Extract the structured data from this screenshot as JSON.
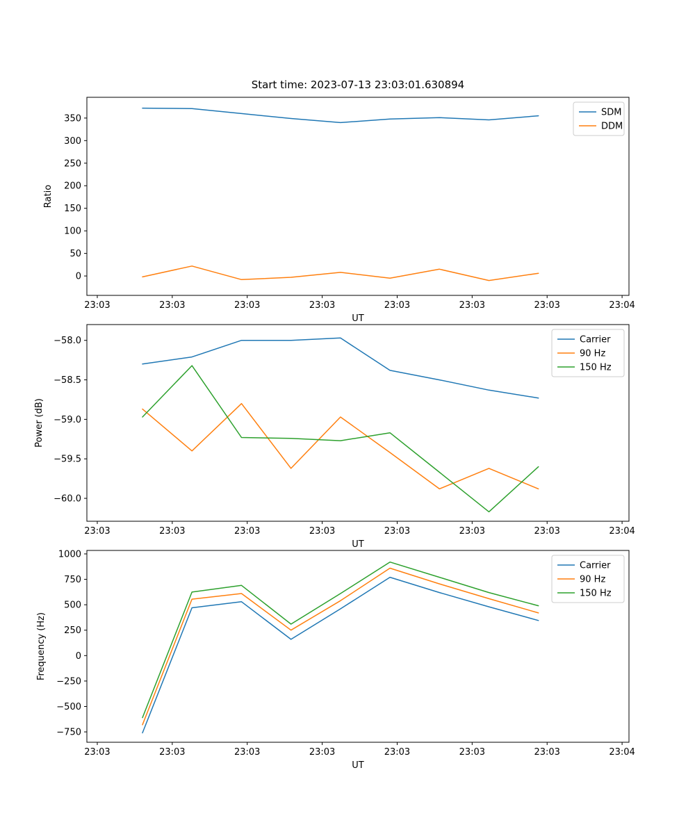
{
  "figure": {
    "title": "Start time: 2023-07-13 23:03:01.630894",
    "background": "#ffffff",
    "colors": {
      "blue": "#1f77b4",
      "orange": "#ff7f0e",
      "green": "#2ca02c"
    }
  },
  "chart_data": [
    {
      "type": "line",
      "title": "",
      "xlabel": "UT",
      "ylabel": "Ratio",
      "grid": false,
      "legend_position": "upper right",
      "legend": [
        "SDM",
        "DDM"
      ],
      "x_tick_labels": [
        "23:03",
        "23:03",
        "23:03",
        "23:03",
        "23:03",
        "23:03",
        "23:03",
        "23:04"
      ],
      "y_ticks": [
        0,
        50,
        100,
        150,
        200,
        250,
        300,
        350
      ],
      "y_tick_labels": [
        "0",
        "50",
        "100",
        "150",
        "200",
        "250",
        "300",
        "350"
      ],
      "ylim": [
        -43,
        396
      ],
      "x": [
        0.1026,
        0.1939,
        0.2852,
        0.3765,
        0.4678,
        0.5591,
        0.6504,
        0.7417,
        0.833
      ],
      "series": [
        {
          "name": "SDM",
          "color": "#1f77b4",
          "values": [
            372,
            371,
            360,
            349,
            340,
            348,
            351,
            346,
            355
          ]
        },
        {
          "name": "DDM",
          "color": "#ff7f0e",
          "values": [
            -2,
            22,
            -8,
            -3,
            8,
            -5,
            15,
            -10,
            6
          ]
        }
      ]
    },
    {
      "type": "line",
      "title": "",
      "xlabel": "UT",
      "ylabel": "Power (dB)",
      "grid": false,
      "legend_position": "upper right",
      "legend": [
        "Carrier",
        "90 Hz",
        "150 Hz"
      ],
      "x_tick_labels": [
        "23:03",
        "23:03",
        "23:03",
        "23:03",
        "23:03",
        "23:03",
        "23:03",
        "23:04"
      ],
      "y_ticks": [
        -58.0,
        -58.5,
        -59.0,
        -59.5,
        -60.0
      ],
      "y_tick_labels": [
        "−58.0",
        "−58.5",
        "−59.0",
        "−59.5",
        "−60.0"
      ],
      "ylim": [
        -60.29,
        -57.8
      ],
      "x": [
        0.1026,
        0.1939,
        0.2852,
        0.3765,
        0.4678,
        0.5591,
        0.6504,
        0.7417,
        0.833
      ],
      "series": [
        {
          "name": "Carrier",
          "color": "#1f77b4",
          "values": [
            -58.3,
            -58.21,
            -58.0,
            -58.0,
            -57.97,
            -58.38,
            -58.5,
            -58.63,
            -58.73
          ]
        },
        {
          "name": "90 Hz",
          "color": "#ff7f0e",
          "values": [
            -58.87,
            -59.4,
            -58.8,
            -59.62,
            -58.97,
            -59.42,
            -59.88,
            -59.62,
            -59.88
          ]
        },
        {
          "name": "150 Hz",
          "color": "#2ca02c",
          "values": [
            -58.97,
            -58.32,
            -59.23,
            -59.24,
            -59.27,
            -59.17,
            -59.67,
            -60.17,
            -59.6
          ]
        }
      ]
    },
    {
      "type": "line",
      "title": "",
      "xlabel": "UT",
      "ylabel": "Frequency (Hz)",
      "grid": false,
      "legend_position": "upper right",
      "legend": [
        "Carrier",
        "90 Hz",
        "150 Hz"
      ],
      "x_tick_labels": [
        "23:03",
        "23:03",
        "23:03",
        "23:03",
        "23:03",
        "23:03",
        "23:03",
        "23:04"
      ],
      "y_ticks": [
        -750,
        -500,
        -250,
        0,
        250,
        500,
        750,
        1000
      ],
      "y_tick_labels": [
        "−750",
        "−500",
        "−250",
        "0",
        "250",
        "500",
        "750",
        "1000"
      ],
      "ylim": [
        -852,
        1034
      ],
      "x": [
        0.1026,
        0.1939,
        0.2852,
        0.3765,
        0.4678,
        0.5591,
        0.6504,
        0.7417,
        0.833
      ],
      "series": [
        {
          "name": "Carrier",
          "color": "#1f77b4",
          "values": [
            -760,
            470,
            530,
            160,
            460,
            770,
            620,
            480,
            345
          ]
        },
        {
          "name": "90 Hz",
          "color": "#ff7f0e",
          "values": [
            -680,
            555,
            610,
            250,
            540,
            860,
            705,
            560,
            420
          ]
        },
        {
          "name": "150 Hz",
          "color": "#2ca02c",
          "values": [
            -610,
            625,
            690,
            310,
            610,
            920,
            770,
            620,
            490
          ]
        }
      ]
    }
  ]
}
